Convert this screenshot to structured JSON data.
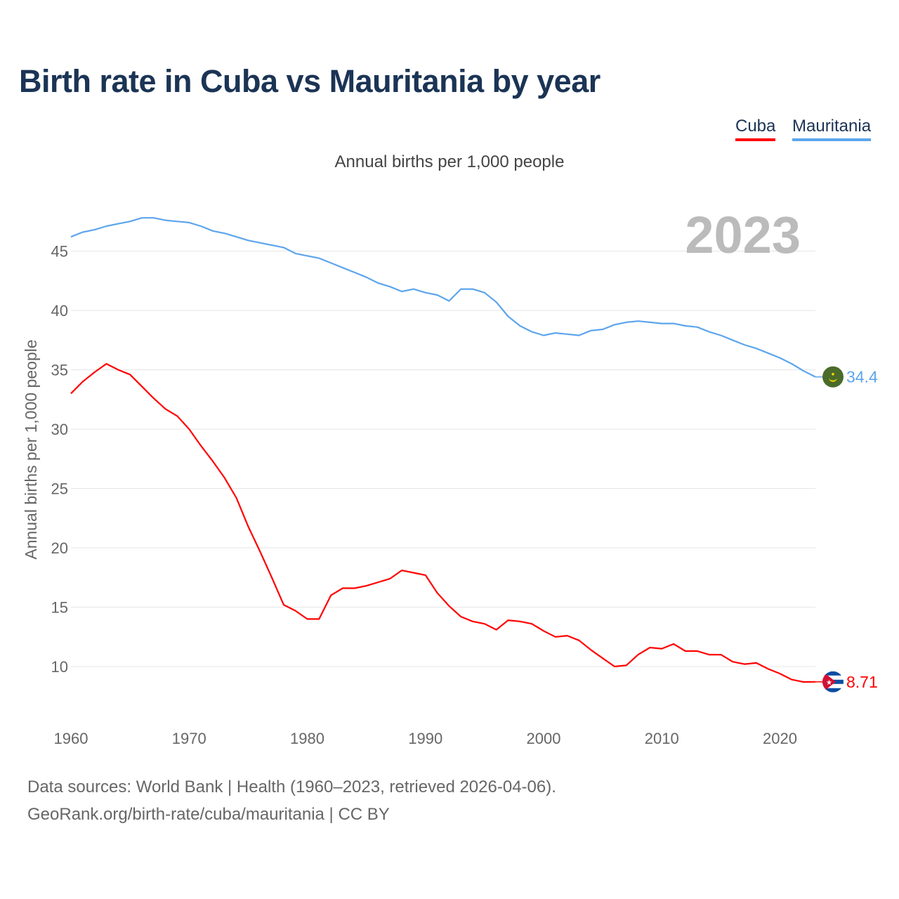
{
  "title": "Birth rate in Cuba vs Mauritania by year",
  "legend": [
    "Cuba",
    "Mauritania"
  ],
  "footer": {
    "line1": "Data sources: World Bank | Health (1960–2023, retrieved 2026-04-06).",
    "line2": "GeoRank.org/birth-rate/cuba/mauritania | CC BY"
  },
  "chart_data": {
    "type": "line",
    "title": "Birth rate in Cuba vs Mauritania by year",
    "subtitle": "Annual births per 1,000 people",
    "ylabel": "Annual births per 1,000 people",
    "xlabel": "",
    "year_label": "2023",
    "xlim": [
      1960,
      2023
    ],
    "ylim": [
      6.2,
      50
    ],
    "xticks": [
      1960,
      1970,
      1980,
      1990,
      2000,
      2010,
      2020
    ],
    "yticks": [
      10,
      15,
      20,
      25,
      30,
      35,
      40,
      45
    ],
    "grid": true,
    "legend_position": "top-right",
    "x": [
      1960,
      1961,
      1962,
      1963,
      1964,
      1965,
      1966,
      1967,
      1968,
      1969,
      1970,
      1971,
      1972,
      1973,
      1974,
      1975,
      1976,
      1977,
      1978,
      1979,
      1980,
      1981,
      1982,
      1983,
      1984,
      1985,
      1986,
      1987,
      1988,
      1989,
      1990,
      1991,
      1992,
      1993,
      1994,
      1995,
      1996,
      1997,
      1998,
      1999,
      2000,
      2001,
      2002,
      2003,
      2004,
      2005,
      2006,
      2007,
      2008,
      2009,
      2010,
      2011,
      2012,
      2013,
      2014,
      2015,
      2016,
      2017,
      2018,
      2019,
      2020,
      2021,
      2022,
      2023
    ],
    "series": [
      {
        "name": "Cuba",
        "color": "#ff0000",
        "end_label": "8.71",
        "values": [
          33.0,
          34.0,
          34.8,
          35.5,
          35.0,
          34.6,
          33.6,
          32.6,
          31.7,
          31.1,
          30.0,
          28.6,
          27.3,
          25.9,
          24.2,
          21.8,
          19.7,
          17.5,
          15.2,
          14.7,
          14.0,
          14.0,
          16.0,
          16.6,
          16.6,
          16.8,
          17.1,
          17.4,
          18.1,
          17.9,
          17.7,
          16.2,
          15.1,
          14.2,
          13.8,
          13.6,
          13.1,
          13.9,
          13.8,
          13.6,
          13.0,
          12.5,
          12.6,
          12.2,
          11.4,
          10.7,
          10.0,
          10.1,
          11.0,
          11.6,
          11.5,
          11.9,
          11.3,
          11.3,
          11.0,
          11.0,
          10.4,
          10.2,
          10.3,
          9.8,
          9.4,
          8.9,
          8.7,
          8.71
        ]
      },
      {
        "name": "Mauritania",
        "color": "#5da5ec",
        "end_label": "34.4",
        "values": [
          46.2,
          46.6,
          46.8,
          47.1,
          47.3,
          47.5,
          47.8,
          47.8,
          47.6,
          47.5,
          47.4,
          47.1,
          46.7,
          46.5,
          46.2,
          45.9,
          45.7,
          45.5,
          45.3,
          44.8,
          44.6,
          44.4,
          44.0,
          43.6,
          43.2,
          42.8,
          42.3,
          42.0,
          41.6,
          41.8,
          41.5,
          41.3,
          40.8,
          41.8,
          41.8,
          41.5,
          40.7,
          39.5,
          38.7,
          38.2,
          37.9,
          38.1,
          38.0,
          37.9,
          38.3,
          38.4,
          38.8,
          39.0,
          39.1,
          39.0,
          38.9,
          38.9,
          38.7,
          38.6,
          38.2,
          37.9,
          37.5,
          37.1,
          36.8,
          36.4,
          36.0,
          35.5,
          34.9,
          34.4
        ]
      }
    ]
  }
}
